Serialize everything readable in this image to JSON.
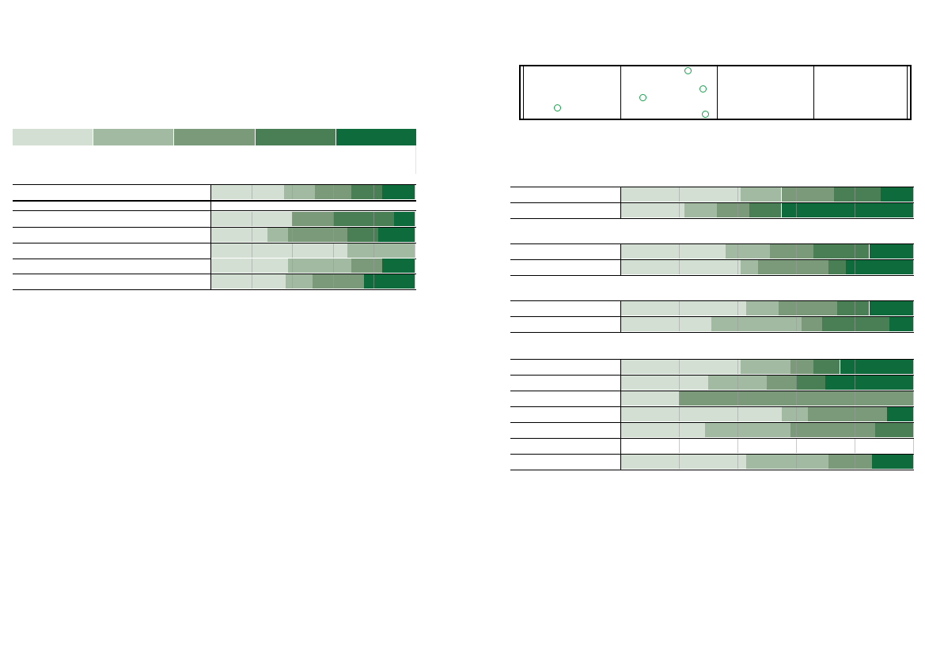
{
  "chart_data": [
    {
      "type": "bar",
      "stacked": true,
      "orientation": "horizontal",
      "title": "",
      "xlim": [
        0,
        100
      ],
      "legend_colors": [
        "#d3dfd3",
        "#a3baa2",
        "#7a9a7a",
        "#4a7f56",
        "#0e6b3b"
      ],
      "rows": [
        {
          "values": [
            36,
            15,
            18,
            15,
            16
          ],
          "group_end": true
        },
        {
          "values": [
            40,
            0,
            20,
            30,
            10
          ]
        },
        {
          "values": [
            28,
            10,
            29,
            15,
            18
          ]
        },
        {
          "values": [
            67,
            33,
            0,
            0,
            0
          ]
        },
        {
          "values": [
            38,
            31,
            15,
            0,
            16
          ]
        },
        {
          "values": [
            37,
            13,
            25,
            0,
            25
          ]
        }
      ]
    },
    {
      "type": "bar",
      "stacked": true,
      "orientation": "horizontal",
      "title": "",
      "xlim": [
        0,
        100
      ],
      "groups": [
        {
          "rows": [
            {
              "values": [
                41,
                14,
                18,
                16,
                11
              ]
            },
            {
              "values": [
                22,
                11,
                11,
                11,
                45
              ]
            }
          ]
        },
        {
          "rows": [
            {
              "values": [
                36,
                15,
                15,
                19,
                15
              ]
            },
            {
              "values": [
                41,
                6,
                24,
                6,
                23
              ]
            }
          ]
        },
        {
          "rows": [
            {
              "values": [
                43,
                11,
                20,
                11,
                15
              ]
            },
            {
              "values": [
                31,
                31,
                7,
                23,
                8
              ]
            }
          ]
        },
        {
          "rows": [
            {
              "values": [
                41,
                17,
                8,
                9,
                25
              ]
            },
            {
              "values": [
                30,
                20,
                10,
                10,
                30
              ]
            },
            {
              "values": [
                20,
                0,
                80,
                0,
                0
              ]
            },
            {
              "values": [
                55,
                9,
                27,
                0,
                9
              ]
            },
            {
              "values": [
                29,
                29,
                29,
                13,
                0
              ]
            },
            {
              "values": [
                0,
                0,
                0,
                0,
                0
              ]
            },
            {
              "values": [
                43,
                28,
                15,
                0,
                14
              ]
            }
          ]
        }
      ]
    },
    {
      "type": "scatter",
      "title": "",
      "panels": 4,
      "points": [
        {
          "panel": 0,
          "x": 0.35,
          "y": 0.2
        },
        {
          "panel": 1,
          "x": 0.7,
          "y": 0.92
        },
        {
          "panel": 1,
          "x": 0.86,
          "y": 0.57
        },
        {
          "panel": 1,
          "x": 0.23,
          "y": 0.4
        },
        {
          "panel": 1,
          "x": 0.88,
          "y": 0.08
        }
      ]
    }
  ]
}
